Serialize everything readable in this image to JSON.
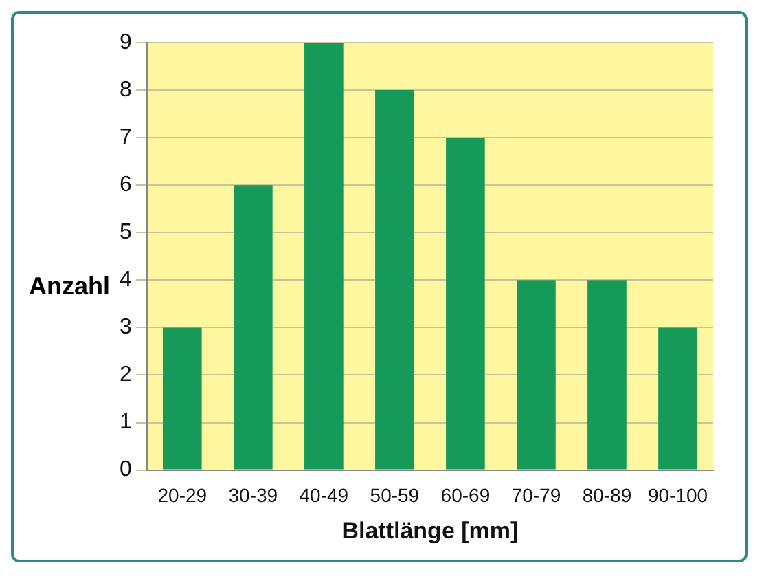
{
  "chart_data": {
    "type": "bar",
    "categories": [
      "20-29",
      "30-39",
      "40-49",
      "50-59",
      "60-69",
      "70-79",
      "80-89",
      "90-100"
    ],
    "values": [
      3,
      6,
      9,
      8,
      7,
      4,
      4,
      3
    ],
    "color": "#169a5a",
    "ylim": [
      0,
      9
    ],
    "yticks": [
      0,
      1,
      2,
      3,
      4,
      5,
      6,
      7,
      8,
      9
    ],
    "grid": "y",
    "ylabel": "Anzahl",
    "xlabel": "Blattlänge [mm]"
  }
}
